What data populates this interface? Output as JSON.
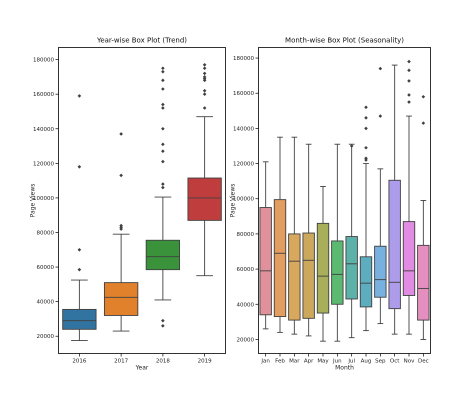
{
  "chart_data": [
    {
      "type": "box",
      "title": "Year-wise Box Plot (Trend)",
      "xlabel": "Year",
      "ylabel": "Page Views",
      "ylim": [
        10000,
        187000
      ],
      "yticks": [
        20000,
        40000,
        60000,
        80000,
        100000,
        120000,
        140000,
        160000,
        180000
      ],
      "ytick_labels": [
        "20000",
        "40000",
        "60000",
        "80000",
        "100000",
        "120000",
        "140000",
        "160000",
        "180000"
      ],
      "categories": [
        "2016",
        "2017",
        "2018",
        "2019"
      ],
      "colors": [
        "#3274a1",
        "#e1812c",
        "#3a923a",
        "#c03d3e"
      ],
      "boxes": [
        {
          "whislo": 17500,
          "q1": 24000,
          "med": 29000,
          "q3": 35500,
          "whishi": 52500,
          "fliers": [
            159000,
            118000,
            70000,
            58500
          ]
        },
        {
          "whislo": 23000,
          "q1": 32000,
          "med": 42500,
          "q3": 51000,
          "whishi": 79000,
          "fliers": [
            137000,
            113000,
            84000,
            83000,
            82000
          ]
        },
        {
          "whislo": 41000,
          "q1": 58500,
          "med": 66000,
          "q3": 75500,
          "whishi": 100500,
          "fliers": [
            175000,
            173000,
            168000,
            163000,
            154000,
            152000,
            140000,
            131000,
            127000,
            121000,
            108000,
            106000,
            29000,
            26000
          ]
        },
        {
          "whislo": 55000,
          "q1": 87000,
          "med": 100000,
          "q3": 111500,
          "whishi": 147000,
          "fliers": [
            177000,
            175000,
            172000,
            170000,
            169000,
            168000,
            162000,
            160000,
            152000
          ]
        }
      ]
    },
    {
      "type": "box",
      "title": "Month-wise Box Plot (Seasonality)",
      "xlabel": "Month",
      "ylabel": "Page Views",
      "ylim": [
        12000,
        186000
      ],
      "yticks": [
        20000,
        40000,
        60000,
        80000,
        100000,
        120000,
        140000,
        160000,
        180000
      ],
      "ytick_labels": [
        "20000",
        "40000",
        "60000",
        "80000",
        "100000",
        "120000",
        "140000",
        "160000",
        "180000"
      ],
      "categories": [
        "Jan",
        "Feb",
        "Mar",
        "Apr",
        "May",
        "Jun",
        "Jul",
        "Aug",
        "Sep",
        "Oct",
        "Nov",
        "Dec"
      ],
      "colors": [
        "#e1919b",
        "#e29d60",
        "#d9a85f",
        "#cba85c",
        "#a9ae5a",
        "#5bb971",
        "#5cb2a8",
        "#5eadbf",
        "#78b0df",
        "#ad9cea",
        "#e18ce2",
        "#e48fc0"
      ],
      "boxes": [
        {
          "whislo": 26000,
          "q1": 34000,
          "med": 59000,
          "q3": 95000,
          "whishi": 121000,
          "fliers": []
        },
        {
          "whislo": 24000,
          "q1": 33000,
          "med": 69000,
          "q3": 99500,
          "whishi": 135000,
          "fliers": []
        },
        {
          "whislo": 23000,
          "q1": 31000,
          "med": 64500,
          "q3": 80000,
          "whishi": 135000,
          "fliers": []
        },
        {
          "whislo": 22000,
          "q1": 32000,
          "med": 65000,
          "q3": 80500,
          "whishi": 131000,
          "fliers": []
        },
        {
          "whislo": 19000,
          "q1": 35000,
          "med": 56000,
          "q3": 86000,
          "whishi": 107000,
          "fliers": []
        },
        {
          "whislo": 19000,
          "q1": 40000,
          "med": 57000,
          "q3": 76000,
          "whishi": 131000,
          "fliers": []
        },
        {
          "whislo": 21000,
          "q1": 43000,
          "med": 63000,
          "q3": 78500,
          "whishi": 131000,
          "fliers": [
            130000
          ]
        },
        {
          "whislo": 25000,
          "q1": 38500,
          "med": 52000,
          "q3": 67000,
          "whishi": 120000,
          "fliers": [
            152000,
            146000,
            140000,
            129000,
            123000,
            122000
          ]
        },
        {
          "whislo": 29000,
          "q1": 44000,
          "med": 54000,
          "q3": 73000,
          "whishi": 117000,
          "fliers": [
            174000,
            147000
          ]
        },
        {
          "whislo": 23000,
          "q1": 37500,
          "med": 52500,
          "q3": 110500,
          "whishi": 176000,
          "fliers": []
        },
        {
          "whislo": 23000,
          "q1": 45000,
          "med": 59000,
          "q3": 87000,
          "whishi": 147000,
          "fliers": [
            178000,
            173000,
            167000,
            159000,
            155000
          ]
        },
        {
          "whislo": 20000,
          "q1": 31000,
          "med": 49000,
          "q3": 73500,
          "whishi": 99000,
          "fliers": [
            158000,
            143000
          ]
        }
      ]
    }
  ]
}
